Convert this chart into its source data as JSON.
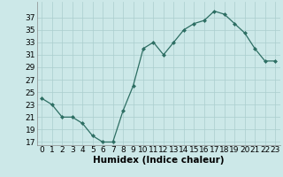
{
  "x": [
    0,
    1,
    2,
    3,
    4,
    5,
    6,
    7,
    8,
    9,
    10,
    11,
    12,
    13,
    14,
    15,
    16,
    17,
    18,
    19,
    20,
    21,
    22,
    23
  ],
  "y": [
    24,
    23,
    21,
    21,
    20,
    18,
    17,
    17,
    22,
    26,
    32,
    33,
    31,
    33,
    35,
    36,
    36.5,
    38,
    37.5,
    36,
    34.5,
    32,
    30,
    30
  ],
  "line_color": "#2d6e63",
  "marker": "D",
  "marker_size": 2.0,
  "bg_color": "#cce8e8",
  "grid_color": "#aacece",
  "xlabel": "Humidex (Indice chaleur)",
  "xlabel_fontsize": 7.5,
  "yticks": [
    17,
    19,
    21,
    23,
    25,
    27,
    29,
    31,
    33,
    35,
    37
  ],
  "ylim": [
    16.5,
    39.5
  ],
  "xlim": [
    -0.5,
    23.5
  ],
  "tick_fontsize": 6.5
}
